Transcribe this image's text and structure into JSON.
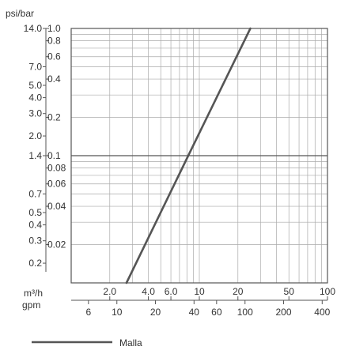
{
  "chart_data": {
    "type": "line",
    "x_scale": "log",
    "y_scale": "log",
    "grid": true,
    "legend_position": "bottom-left",
    "colors": {
      "line": "#555555",
      "grid": "#aaaaaa",
      "axis": "#555555"
    },
    "y_axis": {
      "unit_label": "psi/bar",
      "range_bar": [
        0.01,
        1.0
      ],
      "bar_ticks": [
        {
          "value": 1.0,
          "label": "1.0"
        },
        {
          "value": 0.8,
          "label": "0.8"
        },
        {
          "value": 0.6,
          "label": "0.6"
        },
        {
          "value": 0.4,
          "label": "0.4"
        },
        {
          "value": 0.2,
          "label": "0.2"
        },
        {
          "value": 0.1,
          "label": "0.1"
        },
        {
          "value": 0.08,
          "label": "0.08"
        },
        {
          "value": 0.06,
          "label": "0.06"
        },
        {
          "value": 0.04,
          "label": "0.04"
        },
        {
          "value": 0.02,
          "label": "0.02"
        }
      ],
      "psi_ticks": [
        {
          "value": 14.0,
          "label": "14.0"
        },
        {
          "value": 7.0,
          "label": "7.0"
        },
        {
          "value": 5.0,
          "label": "5.0"
        },
        {
          "value": 4.0,
          "label": "4.0"
        },
        {
          "value": 3.0,
          "label": "3.0"
        },
        {
          "value": 2.0,
          "label": "2.0"
        },
        {
          "value": 1.4,
          "label": "1.4"
        },
        {
          "value": 0.7,
          "label": "0.7"
        },
        {
          "value": 0.5,
          "label": "0.5"
        },
        {
          "value": 0.4,
          "label": "0.4"
        },
        {
          "value": 0.3,
          "label": "0.3"
        },
        {
          "value": 0.2,
          "label": "0.2"
        }
      ]
    },
    "x_axis": {
      "range_m3h": [
        1.0,
        100
      ],
      "m3h_label": "m³/h",
      "gpm_label": "gpm",
      "m3h_ticks": [
        {
          "value": 2.0,
          "label": "2.0"
        },
        {
          "value": 4.0,
          "label": "4.0"
        },
        {
          "value": 6.0,
          "label": "6.0"
        },
        {
          "value": 10,
          "label": "10"
        },
        {
          "value": 20,
          "label": "20"
        },
        {
          "value": 50,
          "label": "50"
        },
        {
          "value": 100,
          "label": "100"
        }
      ],
      "gpm_ticks": [
        {
          "value": 6,
          "label": "6"
        },
        {
          "value": 10,
          "label": "10"
        },
        {
          "value": 20,
          "label": "20"
        },
        {
          "value": 40,
          "label": "40"
        },
        {
          "value": 60,
          "label": "60"
        },
        {
          "value": 100,
          "label": "100"
        },
        {
          "value": 200,
          "label": "200"
        },
        {
          "value": 400,
          "label": "400"
        }
      ]
    },
    "series": [
      {
        "name": "Malla",
        "points": [
          {
            "x": 2.7,
            "y": 0.01
          },
          {
            "x": 8.2,
            "y": 0.1
          },
          {
            "x": 25,
            "y": 1.0
          }
        ]
      }
    ]
  }
}
